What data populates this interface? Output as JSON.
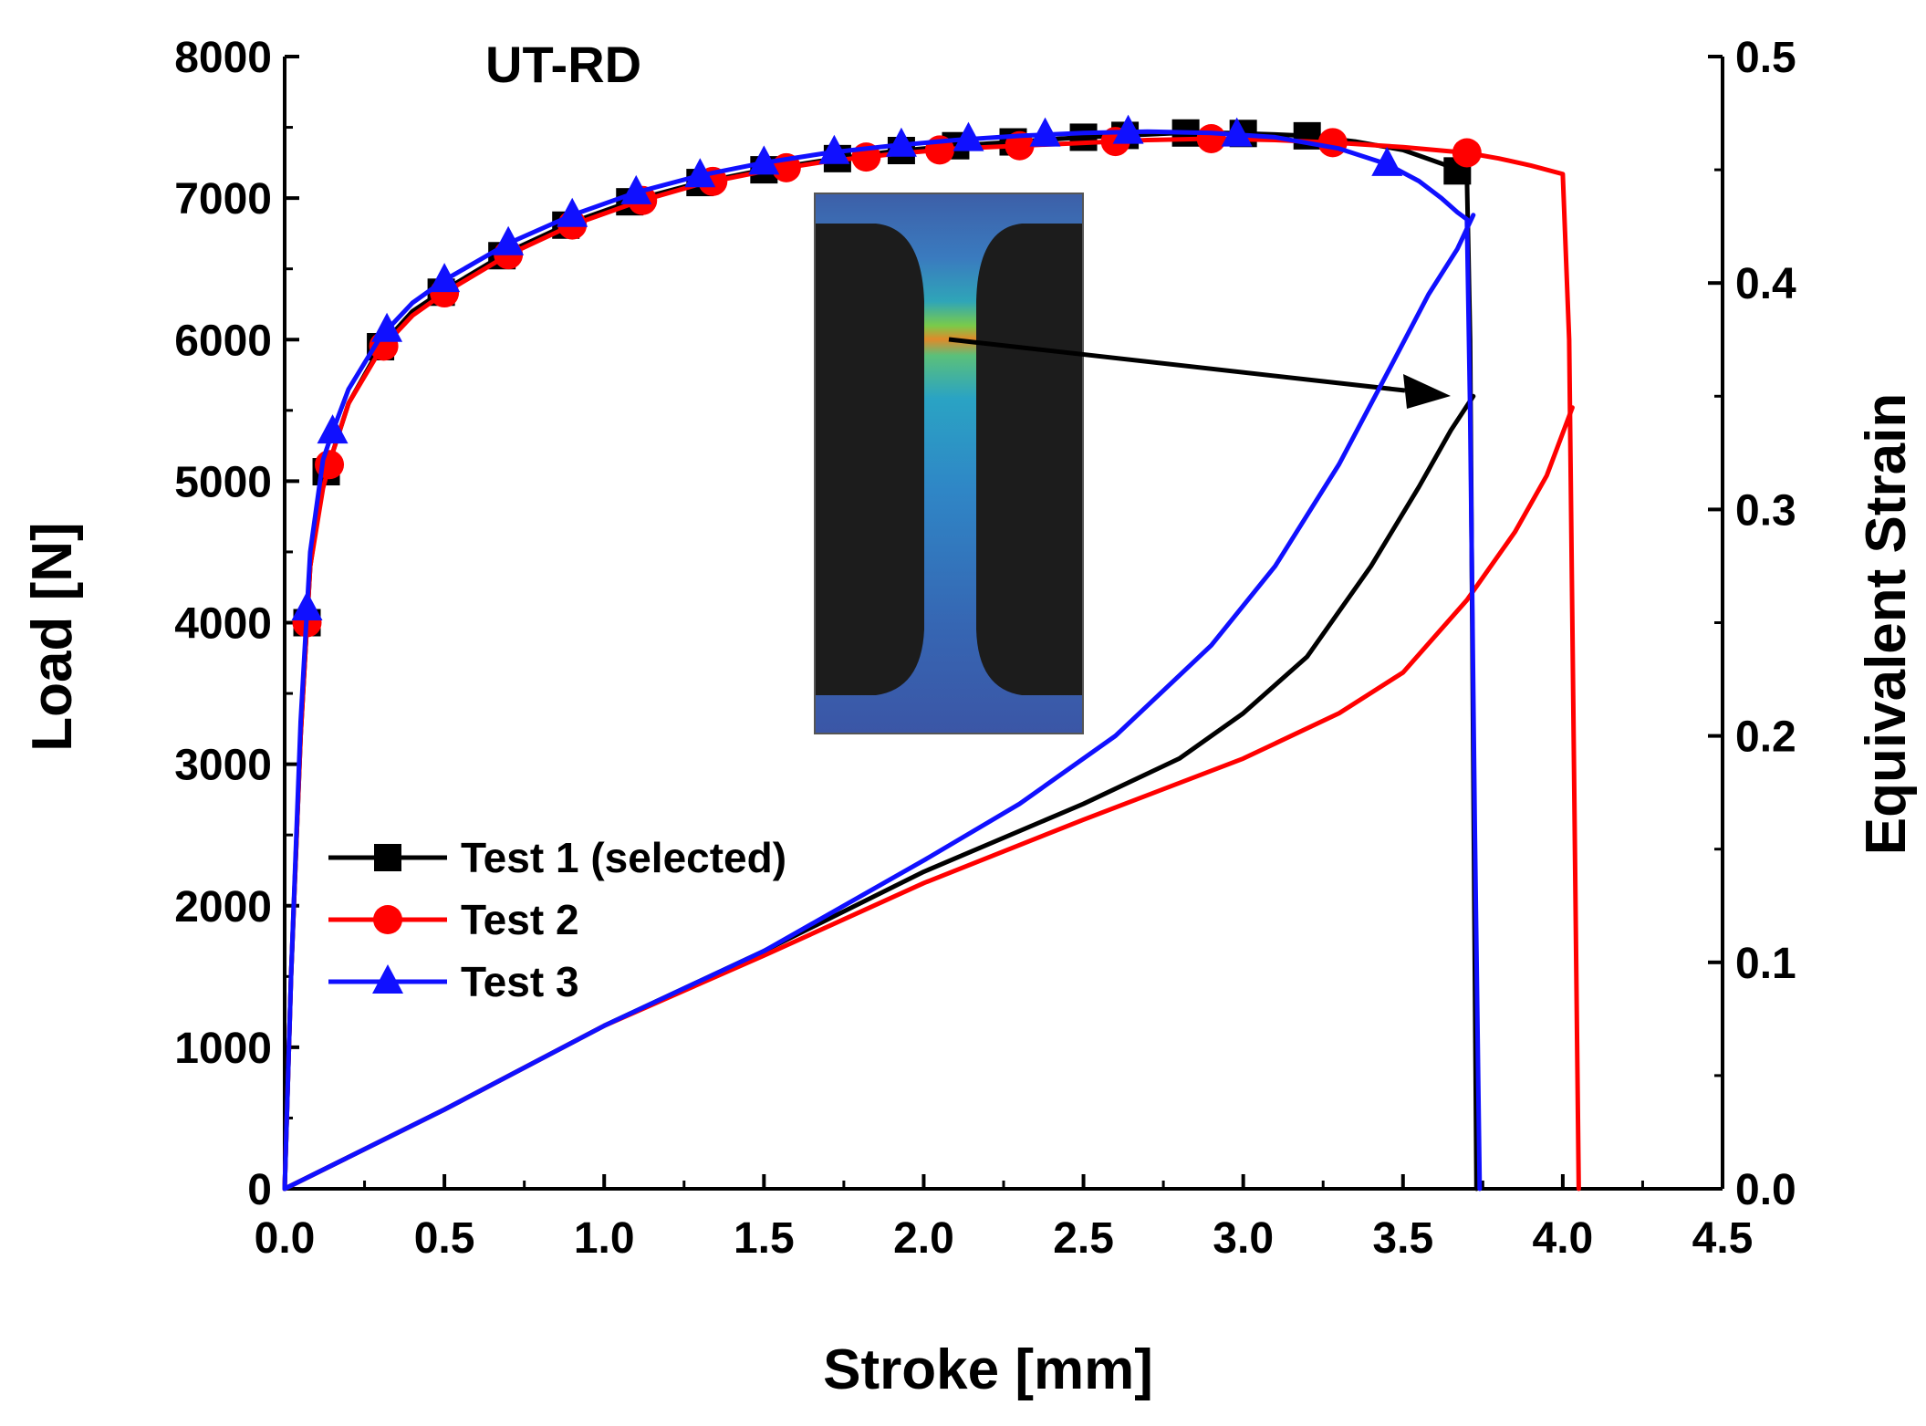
{
  "chart_data": {
    "type": "line",
    "title": "UT-RD",
    "xlabel": "Stroke [mm]",
    "ylabel_left": "Load [N]",
    "ylabel_right": "Equivalent Strain",
    "xlim": [
      0,
      4.5
    ],
    "ylim_left": [
      0,
      8000
    ],
    "ylim_right": [
      0,
      0.5
    ],
    "x_ticks": [
      "0.0",
      "0.5",
      "1.0",
      "1.5",
      "2.0",
      "2.5",
      "3.0",
      "3.5",
      "4.0",
      "4.5"
    ],
    "y_left_ticks": [
      "0",
      "1000",
      "2000",
      "3000",
      "4000",
      "5000",
      "6000",
      "7000",
      "8000"
    ],
    "y_right_ticks": [
      "0.0",
      "0.1",
      "0.2",
      "0.3",
      "0.4",
      "0.5"
    ],
    "grid": false,
    "legend_position": "lower-left",
    "inset": "specimen strain contour image with arrow pointing to fracture strain point",
    "series": [
      {
        "name": "Test 1 (selected)",
        "color": "#000000",
        "marker": "square",
        "load": {
          "x": [
            0,
            0.02,
            0.05,
            0.08,
            0.12,
            0.15,
            0.2,
            0.3,
            0.4,
            0.5,
            0.7,
            0.9,
            1.1,
            1.3,
            1.5,
            1.7,
            1.9,
            2.1,
            2.3,
            2.5,
            2.7,
            2.8,
            2.95,
            3.1,
            3.2,
            3.35,
            3.5,
            3.6,
            3.65,
            3.7,
            3.71,
            3.72,
            3.73
          ],
          "y": [
            0,
            1500,
            3200,
            4400,
            5000,
            5200,
            5550,
            5950,
            6200,
            6350,
            6620,
            6830,
            6990,
            7110,
            7200,
            7270,
            7330,
            7370,
            7400,
            7430,
            7450,
            7460,
            7460,
            7450,
            7440,
            7400,
            7340,
            7260,
            7220,
            7150,
            6000,
            3000,
            0
          ],
          "marker_x": [
            0.07,
            0.13,
            0.3,
            0.49,
            0.68,
            0.88,
            1.08,
            1.3,
            1.5,
            1.73,
            1.93,
            2.1,
            2.28,
            2.5,
            2.63,
            2.82,
            3.0,
            3.2,
            3.67
          ]
        },
        "strain": {
          "x": [
            0,
            0.5,
            1.0,
            1.5,
            2.0,
            2.5,
            2.8,
            3.0,
            3.2,
            3.4,
            3.55,
            3.65,
            3.72
          ],
          "y": [
            0,
            0.035,
            0.072,
            0.105,
            0.14,
            0.17,
            0.19,
            0.21,
            0.235,
            0.275,
            0.31,
            0.335,
            0.35
          ]
        }
      },
      {
        "name": "Test 2",
        "color": "#ff0000",
        "marker": "circle",
        "load": {
          "x": [
            0,
            0.02,
            0.05,
            0.08,
            0.12,
            0.15,
            0.2,
            0.3,
            0.4,
            0.5,
            0.7,
            0.9,
            1.1,
            1.3,
            1.5,
            1.7,
            1.9,
            2.1,
            2.3,
            2.5,
            2.7,
            2.9,
            3.1,
            3.3,
            3.5,
            3.7,
            3.8,
            3.9,
            4.0,
            4.02,
            4.035,
            4.05
          ],
          "y": [
            0,
            1500,
            3200,
            4400,
            4950,
            5200,
            5550,
            5930,
            6170,
            6330,
            6600,
            6810,
            6970,
            7100,
            7190,
            7260,
            7310,
            7350,
            7370,
            7390,
            7410,
            7420,
            7410,
            7390,
            7360,
            7320,
            7280,
            7230,
            7170,
            6000,
            3000,
            0
          ],
          "marker_x": [
            0.07,
            0.14,
            0.31,
            0.5,
            0.7,
            0.9,
            1.12,
            1.34,
            1.57,
            1.82,
            2.05,
            2.3,
            2.6,
            2.9,
            3.28,
            3.7
          ]
        },
        "strain": {
          "x": [
            0,
            0.5,
            1.0,
            1.5,
            2.0,
            2.5,
            3.0,
            3.3,
            3.5,
            3.7,
            3.85,
            3.95,
            4.03
          ],
          "y": [
            0,
            0.035,
            0.072,
            0.103,
            0.135,
            0.163,
            0.19,
            0.21,
            0.228,
            0.26,
            0.29,
            0.315,
            0.345
          ]
        }
      },
      {
        "name": "Test 3",
        "color": "#1010ff",
        "marker": "triangle",
        "load": {
          "x": [
            0,
            0.02,
            0.05,
            0.08,
            0.12,
            0.15,
            0.2,
            0.3,
            0.4,
            0.5,
            0.7,
            0.9,
            1.1,
            1.3,
            1.5,
            1.7,
            1.9,
            2.1,
            2.3,
            2.5,
            2.7,
            2.9,
            3.1,
            3.3,
            3.45,
            3.55,
            3.62,
            3.67,
            3.7,
            3.71,
            3.725,
            3.74
          ],
          "y": [
            0,
            1500,
            3300,
            4500,
            5150,
            5350,
            5650,
            6020,
            6260,
            6420,
            6680,
            6880,
            7040,
            7160,
            7250,
            7320,
            7370,
            7410,
            7440,
            7460,
            7470,
            7460,
            7430,
            7350,
            7240,
            7120,
            7000,
            6900,
            6850,
            5500,
            2500,
            0
          ],
          "marker_x": [
            0.07,
            0.15,
            0.32,
            0.5,
            0.7,
            0.9,
            1.1,
            1.3,
            1.5,
            1.72,
            1.93,
            2.14,
            2.38,
            2.64,
            2.98,
            3.45
          ]
        },
        "strain": {
          "x": [
            0,
            0.5,
            1.0,
            1.5,
            2.0,
            2.3,
            2.6,
            2.9,
            3.1,
            3.3,
            3.45,
            3.58,
            3.67,
            3.72
          ],
          "y": [
            0,
            0.035,
            0.072,
            0.105,
            0.145,
            0.17,
            0.2,
            0.24,
            0.275,
            0.32,
            0.36,
            0.395,
            0.415,
            0.43
          ]
        }
      }
    ]
  }
}
